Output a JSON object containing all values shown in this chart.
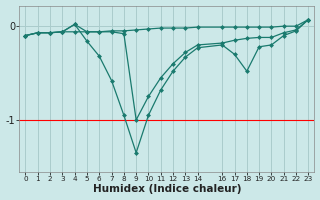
{
  "xlabel": "Humidex (Indice chaleur)",
  "background_color": "#cce8e8",
  "grid_color": "#aacccc",
  "line_color": "#1a7a6e",
  "xlim": [
    -0.5,
    23.5
  ],
  "ylim": [
    -1.55,
    0.22
  ],
  "yticks": [
    0,
    -1
  ],
  "xticks": [
    0,
    1,
    2,
    3,
    4,
    5,
    6,
    7,
    8,
    9,
    10,
    11,
    12,
    13,
    14,
    16,
    17,
    18,
    19,
    20,
    21,
    22,
    23
  ],
  "line1_x": [
    0,
    1,
    2,
    3,
    4,
    5,
    6,
    7,
    8,
    9,
    10,
    11,
    12,
    13,
    14,
    16,
    17,
    18,
    19,
    20,
    21,
    22,
    23
  ],
  "line1_y": [
    -0.1,
    -0.07,
    -0.07,
    -0.06,
    -0.06,
    -0.06,
    -0.06,
    -0.05,
    -0.05,
    -0.04,
    -0.03,
    -0.02,
    -0.02,
    -0.02,
    -0.01,
    -0.01,
    -0.01,
    -0.01,
    -0.01,
    -0.01,
    0.0,
    0.0,
    0.07
  ],
  "line2_x": [
    0,
    1,
    2,
    3,
    4,
    5,
    6,
    7,
    8,
    9,
    10,
    11,
    12,
    13,
    14,
    16,
    17,
    18,
    19,
    20,
    21,
    22,
    23
  ],
  "line2_y": [
    -0.1,
    -0.07,
    -0.07,
    -0.06,
    0.02,
    -0.06,
    -0.06,
    -0.06,
    -0.08,
    -1.0,
    -0.75,
    -0.55,
    -0.4,
    -0.28,
    -0.2,
    -0.18,
    -0.15,
    -0.13,
    -0.12,
    -0.12,
    -0.07,
    -0.04,
    0.07
  ],
  "line3_x": [
    0,
    1,
    2,
    3,
    4,
    5,
    6,
    7,
    8,
    9,
    10,
    11,
    12,
    13,
    14,
    16,
    17,
    18,
    19,
    20,
    21,
    22,
    23
  ],
  "line3_y": [
    -0.1,
    -0.07,
    -0.07,
    -0.06,
    0.02,
    -0.16,
    -0.32,
    -0.58,
    -0.95,
    -1.35,
    -0.95,
    -0.68,
    -0.48,
    -0.33,
    -0.23,
    -0.2,
    -0.3,
    -0.48,
    -0.22,
    -0.2,
    -0.1,
    -0.05,
    0.07
  ],
  "red_line_y": -1.0
}
